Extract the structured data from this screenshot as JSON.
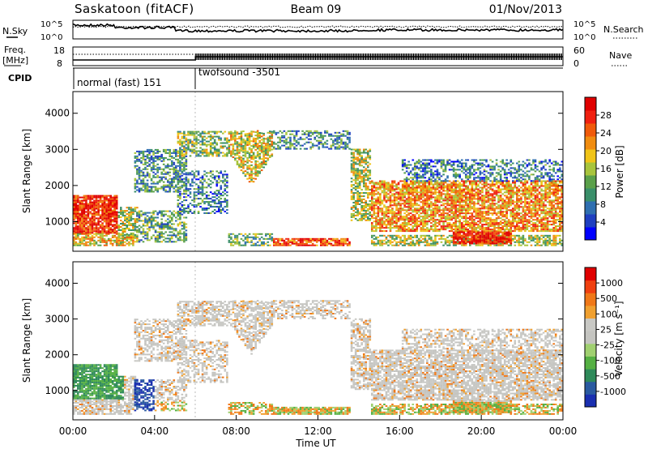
{
  "header": {
    "station": "Saskatoon (fitACF)",
    "beam": "Beam 09",
    "date": "01/Nov/2013"
  },
  "noise_panel": {
    "left_label": "N.Sky",
    "left_ticks": [
      "10^5",
      "10^0"
    ],
    "right_label": "N.Search",
    "right_ticks": [
      "10^5",
      "10^0"
    ]
  },
  "freq_panel": {
    "left_label_1": "Freq.",
    "left_label_2": "[MHz]",
    "left_ticks": [
      "18",
      "8"
    ],
    "right_label": "Nave",
    "right_ticks": [
      "60",
      "0"
    ]
  },
  "cpid": {
    "label": "CPID",
    "modes": [
      {
        "name": "normal (fast) 151",
        "start_hour": 0,
        "end_hour": 6
      },
      {
        "name": "twofsound -3501",
        "start_hour": 6,
        "end_hour": 24
      }
    ]
  },
  "colors": {
    "power_scale": [
      "#0000ff",
      "#1f3fc0",
      "#2f6fb0",
      "#3a8f6a",
      "#5aa04a",
      "#a8c43c",
      "#f0c418",
      "#f08c10",
      "#f05a0a",
      "#f02010",
      "#e00000"
    ],
    "velocity_scale": [
      "#1a2fb0",
      "#2a5aa0",
      "#2f8a5a",
      "#55b043",
      "#a0d070",
      "#c4c4c0",
      "#c8c8c4",
      "#f0a030",
      "#f07818",
      "#f04010",
      "#e00000"
    ]
  },
  "chart_data": [
    {
      "type": "heatmap",
      "name": "Power",
      "xlabel": "",
      "ylabel": "Slant Range [km]",
      "xlim": [
        0,
        24
      ],
      "ylim": [
        180,
        4600
      ],
      "y_ticks": [
        1000,
        2000,
        3000,
        4000
      ],
      "colorbar": {
        "label": "Power [dB]",
        "range": [
          0,
          32
        ],
        "ticks": [
          "4",
          "8",
          "12",
          "16",
          "20",
          "24",
          "28"
        ]
      }
    },
    {
      "type": "heatmap",
      "name": "Velocity",
      "xlabel": "Time UT",
      "ylabel": "Slant Range [km]",
      "xlim": [
        0,
        24
      ],
      "ylim": [
        180,
        4600
      ],
      "x_ticks": [
        "00:00",
        "04:00",
        "08:00",
        "12:00",
        "16:00",
        "20:00",
        "00:00"
      ],
      "y_ticks": [
        1000,
        2000,
        3000,
        4000
      ],
      "colorbar": {
        "label": "Velocity [m s⁻¹]",
        "ticks": [
          "1000",
          "500",
          "100",
          "25",
          "-25",
          "-100",
          "-500",
          "-1000"
        ]
      }
    }
  ]
}
